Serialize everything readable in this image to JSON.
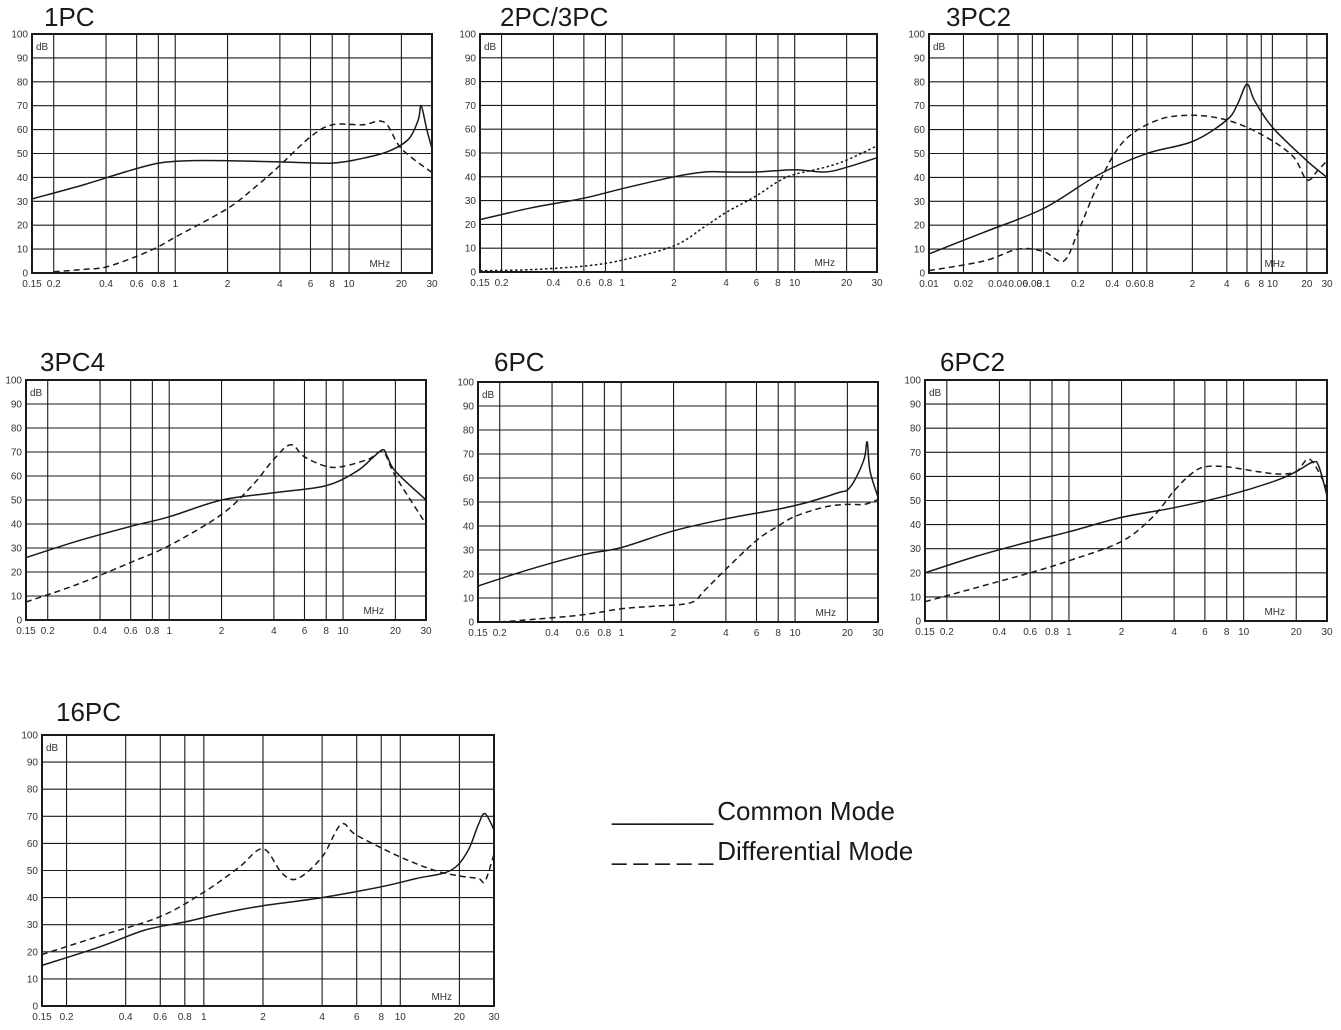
{
  "colors": {
    "axis": "#1a1a1a",
    "grid": "#1a1a1a",
    "line": "#1a1a1a",
    "background": "#ffffff"
  },
  "legend": {
    "common": {
      "swatch": "_______",
      "label": "Common Mode"
    },
    "differential": {
      "swatch": "_ _ _ _ _",
      "label": "Differential Mode"
    }
  },
  "chart_data": [
    {
      "title": "1PC",
      "type": "line",
      "xscale": "log",
      "xlim": [
        0.15,
        30
      ],
      "ylim": [
        0,
        100
      ],
      "ylabel": "dB",
      "xlabel": "MHz",
      "grid": true,
      "xticks": [
        "0.15",
        "0.2",
        "0.4",
        "0.6",
        "0.8",
        "1",
        "2",
        "4",
        "6",
        "8",
        "10",
        "20",
        "30"
      ],
      "yticks": [
        "0",
        "10",
        "20",
        "30",
        "40",
        "50",
        "60",
        "70",
        "80",
        "90",
        "100"
      ],
      "series": [
        {
          "mode": "common",
          "x": [
            0.15,
            0.3,
            0.5,
            0.8,
            1.2,
            2,
            4,
            8,
            12,
            17,
            22,
            25,
            26,
            28,
            30
          ],
          "y": [
            31,
            37,
            42,
            46,
            47,
            47,
            46.5,
            46,
            48,
            51,
            56,
            64,
            70,
            60,
            52
          ]
        },
        {
          "mode": "differential",
          "x": [
            0.2,
            0.3,
            0.4,
            0.6,
            0.8,
            1,
            2,
            3,
            4,
            6,
            8,
            12,
            16,
            20,
            30
          ],
          "y": [
            0.5,
            1.5,
            2.5,
            7,
            11,
            15,
            27,
            37,
            45,
            57,
            62,
            62,
            63,
            52,
            42
          ]
        }
      ]
    },
    {
      "title": "2PC/3PC",
      "type": "line",
      "xscale": "log",
      "xlim": [
        0.15,
        30
      ],
      "ylim": [
        0,
        100
      ],
      "ylabel": "dB",
      "xlabel": "MHz",
      "grid": true,
      "xticks": [
        "0.15",
        "0.2",
        "0.4",
        "0.6",
        "0.8",
        "1",
        "2",
        "4",
        "6",
        "8",
        "10",
        "20",
        "30"
      ],
      "yticks": [
        "0",
        "10",
        "20",
        "30",
        "40",
        "50",
        "60",
        "70",
        "80",
        "90",
        "100"
      ],
      "series": [
        {
          "mode": "common",
          "x": [
            0.15,
            0.3,
            0.6,
            1,
            2,
            3,
            4,
            6,
            10,
            15,
            20,
            30
          ],
          "y": [
            22,
            27,
            31,
            35,
            40,
            42,
            42,
            42,
            43,
            42,
            44,
            48
          ]
        },
        {
          "mode": "differential",
          "x": [
            0.15,
            0.3,
            0.6,
            1,
            2,
            3,
            4,
            6,
            8,
            10,
            15,
            20,
            30
          ],
          "y": [
            0.5,
            1,
            2.5,
            5,
            11,
            19,
            25,
            32,
            38,
            41,
            44,
            47,
            53
          ]
        }
      ]
    },
    {
      "title": "3PC2",
      "type": "line",
      "xscale": "log",
      "xlim": [
        0.01,
        30
      ],
      "ylim": [
        0,
        100
      ],
      "ylabel": "dB",
      "xlabel": "MHz",
      "grid": true,
      "xticks": [
        "0.01",
        "0.02",
        "0.04",
        "0.06",
        "0.08",
        "0.1",
        "0.2",
        "0.4",
        "0.6",
        "0.8",
        "2",
        "4",
        "6",
        "8",
        "10",
        "20",
        "30"
      ],
      "yticks": [
        "0",
        "10",
        "20",
        "30",
        "40",
        "50",
        "60",
        "70",
        "80",
        "90",
        "100"
      ],
      "series": [
        {
          "mode": "common",
          "x": [
            0.01,
            0.03,
            0.1,
            0.3,
            0.8,
            2,
            4,
            5,
            6,
            7,
            10,
            20,
            30
          ],
          "y": [
            8,
            17,
            27,
            41,
            50,
            55,
            64,
            71,
            79,
            72,
            61,
            47,
            40
          ]
        },
        {
          "mode": "differential",
          "x": [
            0.01,
            0.03,
            0.06,
            0.1,
            0.15,
            0.2,
            0.3,
            0.5,
            1,
            2,
            4,
            8,
            15,
            20,
            25,
            30
          ],
          "y": [
            1,
            5,
            10,
            9,
            5,
            17,
            37,
            55,
            64,
            66,
            64,
            58,
            49,
            39,
            43,
            47
          ]
        }
      ]
    },
    {
      "title": "3PC4",
      "type": "line",
      "xscale": "log",
      "xlim": [
        0.15,
        30
      ],
      "ylim": [
        0,
        100
      ],
      "ylabel": "dB",
      "xlabel": "MHz",
      "grid": true,
      "xticks": [
        "0.15",
        "0.2",
        "0.4",
        "0.6",
        "0.8",
        "1",
        "2",
        "4",
        "6",
        "8",
        "10",
        "20",
        "30"
      ],
      "yticks": [
        "0",
        "10",
        "20",
        "30",
        "40",
        "50",
        "60",
        "70",
        "80",
        "90",
        "100"
      ],
      "series": [
        {
          "mode": "common",
          "x": [
            0.15,
            0.3,
            0.6,
            1,
            2,
            4,
            8,
            12,
            15,
            17,
            18,
            20,
            30
          ],
          "y": [
            26,
            33,
            39,
            43,
            50,
            53,
            56,
            62,
            68,
            71,
            68,
            62,
            50
          ]
        },
        {
          "mode": "differential",
          "x": [
            0.15,
            0.3,
            0.6,
            1,
            2,
            3,
            4,
            5,
            6,
            8,
            10,
            14,
            17,
            20,
            30
          ],
          "y": [
            7.5,
            15,
            24,
            31,
            44,
            56,
            67,
            73,
            68,
            64,
            64,
            67,
            70,
            60,
            40
          ]
        }
      ]
    },
    {
      "title": "6PC",
      "type": "line",
      "xscale": "log",
      "xlim": [
        0.15,
        30
      ],
      "ylim": [
        0,
        100
      ],
      "ylabel": "dB",
      "xlabel": "MHz",
      "grid": true,
      "xticks": [
        "0.15",
        "0.2",
        "0.4",
        "0.6",
        "0.8",
        "1",
        "2",
        "4",
        "6",
        "8",
        "10",
        "20",
        "30"
      ],
      "yticks": [
        "0",
        "10",
        "20",
        "30",
        "40",
        "50",
        "60",
        "70",
        "80",
        "90",
        "100"
      ],
      "series": [
        {
          "mode": "common",
          "x": [
            0.15,
            0.3,
            0.6,
            1,
            2,
            4,
            8,
            12,
            18,
            20,
            22,
            25,
            26,
            27,
            30
          ],
          "y": [
            15,
            22,
            28,
            31,
            38,
            43,
            47,
            50,
            54,
            55,
            59,
            68,
            75,
            63,
            52
          ]
        },
        {
          "mode": "differential",
          "x": [
            0.2,
            0.3,
            0.6,
            1,
            1.5,
            2.5,
            3,
            4,
            6,
            8,
            10,
            15,
            20,
            25,
            30
          ],
          "y": [
            0,
            1,
            3,
            5.5,
            6.5,
            8,
            13,
            22,
            34,
            40,
            44,
            48,
            49,
            49,
            51
          ]
        }
      ]
    },
    {
      "title": "6PC2",
      "type": "line",
      "xscale": "log",
      "xlim": [
        0.15,
        30
      ],
      "ylim": [
        0,
        100
      ],
      "ylabel": "dB",
      "xlabel": "MHz",
      "grid": true,
      "xticks": [
        "0.15",
        "0.2",
        "0.4",
        "0.6",
        "0.8",
        "1",
        "2",
        "4",
        "6",
        "8",
        "10",
        "20",
        "30"
      ],
      "yticks": [
        "0",
        "10",
        "20",
        "30",
        "40",
        "50",
        "60",
        "70",
        "80",
        "90",
        "100"
      ],
      "series": [
        {
          "mode": "common",
          "x": [
            0.15,
            0.3,
            0.6,
            1,
            2,
            4,
            8,
            15,
            20,
            25,
            27,
            30
          ],
          "y": [
            20,
            27,
            33,
            37,
            43,
            47,
            52,
            58,
            62,
            66,
            64,
            52
          ]
        },
        {
          "mode": "differential",
          "x": [
            0.15,
            0.3,
            0.6,
            1,
            2,
            3,
            4,
            5,
            6,
            8,
            12,
            16,
            20,
            24,
            30
          ],
          "y": [
            8,
            14,
            20,
            25,
            33,
            43,
            54,
            61,
            64,
            64,
            62,
            61,
            62,
            67,
            55
          ]
        }
      ]
    },
    {
      "title": "16PC",
      "type": "line",
      "xscale": "log",
      "xlim": [
        0.15,
        30
      ],
      "ylim": [
        0,
        100
      ],
      "ylabel": "dB",
      "xlabel": "MHz",
      "grid": true,
      "xticks": [
        "0.15",
        "0.2",
        "0.4",
        "0.6",
        "0.8",
        "1",
        "2",
        "4",
        "6",
        "8",
        "10",
        "20",
        "30"
      ],
      "yticks": [
        "0",
        "10",
        "20",
        "30",
        "40",
        "50",
        "60",
        "70",
        "80",
        "90",
        "100"
      ],
      "series": [
        {
          "mode": "common",
          "x": [
            0.15,
            0.3,
            0.5,
            0.8,
            1.2,
            2,
            4,
            8,
            12,
            18,
            22,
            25,
            27,
            30
          ],
          "y": [
            15,
            22,
            28,
            31,
            34,
            37,
            40,
            44,
            47,
            50,
            57,
            67,
            71,
            65
          ]
        },
        {
          "mode": "differential",
          "x": [
            0.15,
            0.3,
            0.6,
            1,
            1.5,
            2,
            2.5,
            3,
            4,
            5,
            6,
            10,
            15,
            20,
            25,
            27,
            30
          ],
          "y": [
            19,
            26,
            33,
            42,
            51,
            58,
            49,
            47,
            55,
            67,
            63,
            55,
            50,
            48,
            47,
            46,
            56
          ]
        }
      ]
    }
  ]
}
